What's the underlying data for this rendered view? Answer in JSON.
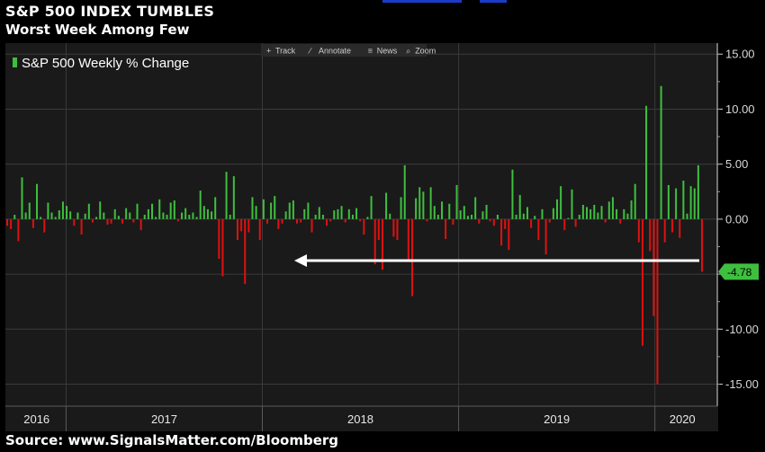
{
  "header": {
    "title": "S&P 500 INDEX TUMBLES",
    "subtitle": "Worst Week Among Few"
  },
  "source": "Source: www.SignalsMatter.com/Bloomberg",
  "toolbar": {
    "items": [
      {
        "icon": "crosshair-icon",
        "label": "Track"
      },
      {
        "icon": "pencil-icon",
        "label": "Annotate"
      },
      {
        "icon": "news-icon",
        "label": "News"
      },
      {
        "icon": "magnifier-icon",
        "label": "Zoom"
      }
    ]
  },
  "colors": {
    "background": "#1a1a1a",
    "positive": "#3fbf3f",
    "negative": "#e01010",
    "grid": "#3a3a3a",
    "callout": "#3fbf3f",
    "arrow": "#ffffff"
  },
  "chart_data": {
    "type": "bar",
    "legend": {
      "label": "S&P 500 Weekly % Change",
      "position": "top-left"
    },
    "ylim": [
      -17,
      16
    ],
    "yticks": [
      "15.00",
      "10.00",
      "5.00",
      "0.00",
      "-5.00",
      "-10.00",
      "-15.00"
    ],
    "ytick_values": [
      15,
      10,
      5,
      0,
      -5,
      -10,
      -15
    ],
    "y_axis_side": "right",
    "grid": true,
    "x_start": 2016.7,
    "x_end": 2020.24,
    "year_labels": [
      "2016",
      "2017",
      "2018",
      "2019",
      "2020"
    ],
    "latest_value_label": "-4.78",
    "latest_value": -4.78,
    "annotation": "arrow from latest week back to comparable decline in 2018",
    "values": [
      -0.6,
      -0.9,
      0.4,
      -2.0,
      3.8,
      0.6,
      1.5,
      -0.8,
      3.2,
      0.2,
      -1.2,
      1.5,
      0.6,
      0.2,
      0.8,
      1.6,
      1.2,
      0.7,
      -0.6,
      0.6,
      -1.4,
      0.5,
      1.4,
      -0.3,
      0.2,
      1.6,
      0.6,
      -0.5,
      -0.4,
      0.9,
      0.3,
      -0.4,
      1.0,
      0.6,
      -0.3,
      1.4,
      -1.0,
      0.4,
      0.9,
      1.4,
      0.2,
      1.8,
      0.6,
      0.4,
      1.5,
      1.7,
      -0.2,
      0.6,
      1.0,
      0.4,
      0.6,
      0.2,
      2.6,
      1.2,
      0.9,
      0.7,
      2.0,
      -3.6,
      -5.2,
      4.3,
      0.4,
      3.9,
      -1.9,
      -1.1,
      -5.9,
      -1.2,
      2.0,
      1.2,
      -1.9,
      1.8,
      -0.4,
      1.5,
      2.1,
      -0.9,
      -0.4,
      0.7,
      1.5,
      1.7,
      -0.4,
      -0.3,
      0.9,
      1.5,
      -1.2,
      0.4,
      1.1,
      0.4,
      -0.6,
      -0.2,
      0.8,
      0.9,
      1.2,
      -0.3,
      0.9,
      0.4,
      1.0,
      -0.2,
      -1.4,
      0.2,
      2.1,
      -4.1,
      -1.9,
      -4.6,
      2.4,
      0.5,
      -1.6,
      -1.9,
      2.0,
      4.9,
      -3.8,
      -7.0,
      1.9,
      2.9,
      2.5,
      -0.2,
      2.9,
      1.2,
      0.4,
      1.6,
      -1.8,
      1.4,
      -0.5,
      3.1,
      0.8,
      1.2,
      0.3,
      0.4,
      2.0,
      -0.4,
      0.7,
      1.3,
      -0.2,
      -0.6,
      0.4,
      -2.4,
      -0.9,
      -2.8,
      4.5,
      0.4,
      2.2,
      0.5,
      1.1,
      -0.8,
      0.3,
      -1.9,
      0.9,
      -3.2,
      -0.3,
      1.0,
      1.8,
      3.0,
      -1.0,
      0.1,
      2.7,
      -0.7,
      0.4,
      1.3,
      1.1,
      0.9,
      1.3,
      0.6,
      1.2,
      -0.3,
      1.6,
      2.0,
      0.9,
      -0.4,
      0.9,
      0.5,
      1.7,
      3.2,
      -2.1,
      -11.5,
      10.3,
      -2.9,
      -8.8,
      -15.0,
      12.1,
      -2.1,
      3.1,
      -1.2,
      2.8,
      -1.7,
      3.5,
      0.5,
      3.0,
      2.8,
      4.9,
      -4.78
    ]
  }
}
